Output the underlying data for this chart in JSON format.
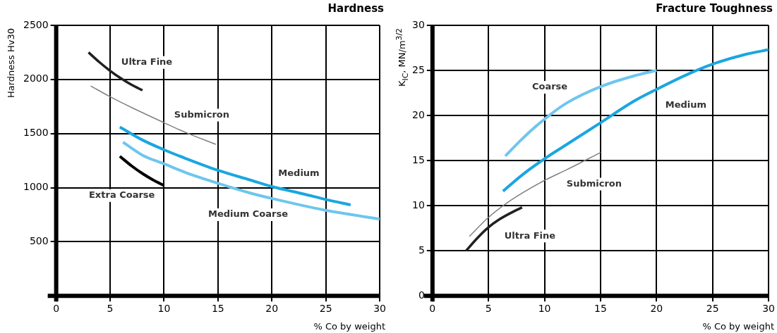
{
  "chart_data": [
    {
      "type": "line",
      "title": "Hardness",
      "xlabel": "% Co by weight",
      "ylabel": "Hardness Hv30",
      "xlim": [
        0,
        30
      ],
      "xticks": [
        0,
        5,
        10,
        15,
        20,
        25,
        30
      ],
      "ylim": [
        0,
        2500
      ],
      "yticks": [
        {
          "value": 0,
          "label": null
        },
        500,
        1000,
        1500,
        2000,
        2500
      ],
      "grid": true,
      "legend": false,
      "marker": "none",
      "series": [
        {
          "name": "Ultra Fine",
          "color": "#231f20",
          "x": [
            3,
            4,
            5,
            6,
            7,
            8
          ],
          "values": [
            2250,
            2160,
            2080,
            2010,
            1950,
            1900
          ]
        },
        {
          "name": "Submicron",
          "color": "#808080",
          "x": [
            3.2,
            5,
            7,
            10,
            12,
            14.8
          ],
          "values": [
            1940,
            1840,
            1740,
            1600,
            1510,
            1400
          ]
        },
        {
          "name": "Medium",
          "color": "#1aa6e0",
          "x": [
            5.9,
            8,
            10,
            12,
            15,
            18,
            20,
            23,
            25,
            27.3
          ],
          "values": [
            1560,
            1440,
            1350,
            1270,
            1160,
            1070,
            1010,
            940,
            890,
            840
          ]
        },
        {
          "name": "Medium Coarse",
          "color": "#6ec6ee",
          "x": [
            6.2,
            8,
            10,
            12,
            15,
            18,
            20,
            25,
            30
          ],
          "values": [
            1420,
            1300,
            1220,
            1140,
            1040,
            950,
            900,
            790,
            710
          ]
        },
        {
          "name": "Extra Coarse",
          "color": "#000000",
          "x": [
            5.9,
            7,
            8,
            9,
            10
          ],
          "values": [
            1290,
            1200,
            1130,
            1070,
            1020
          ]
        }
      ]
    },
    {
      "type": "line",
      "title": "Fracture Toughness",
      "xlabel": "% Co by weight",
      "ylabel": "K$_{IC}$, MN/m$^{3/2}$",
      "xlim": [
        0,
        30
      ],
      "xticks": [
        0,
        5,
        10,
        15,
        20,
        25,
        30
      ],
      "ylim": [
        0,
        30
      ],
      "yticks": [
        0,
        5,
        10,
        15,
        20,
        25,
        30
      ],
      "grid": true,
      "legend": false,
      "marker": "none",
      "series": [
        {
          "name": "Coarse",
          "color": "#6ec6ee",
          "x": [
            6.5,
            8,
            10,
            12,
            15,
            18,
            20
          ],
          "values": [
            15.5,
            17.4,
            19.6,
            21.4,
            23.2,
            24.4,
            25
          ]
        },
        {
          "name": "Medium",
          "color": "#1aa6e0",
          "x": [
            6.3,
            8,
            10,
            12,
            15,
            18,
            20,
            23,
            25,
            28,
            30
          ],
          "values": [
            11.6,
            13.4,
            15.2,
            16.8,
            19.2,
            21.6,
            22.9,
            24.7,
            25.7,
            26.8,
            27.3
          ]
        },
        {
          "name": "Submicron",
          "color": "#808080",
          "x": [
            3.3,
            5,
            7,
            10,
            12,
            15
          ],
          "values": [
            6.6,
            8.7,
            10.6,
            12.8,
            14,
            15.9
          ]
        },
        {
          "name": "Ultra Fine",
          "color": "#231f20",
          "x": [
            3,
            4,
            5,
            6,
            7,
            8
          ],
          "values": [
            5,
            6.4,
            7.6,
            8.5,
            9.2,
            9.8
          ]
        }
      ]
    }
  ]
}
